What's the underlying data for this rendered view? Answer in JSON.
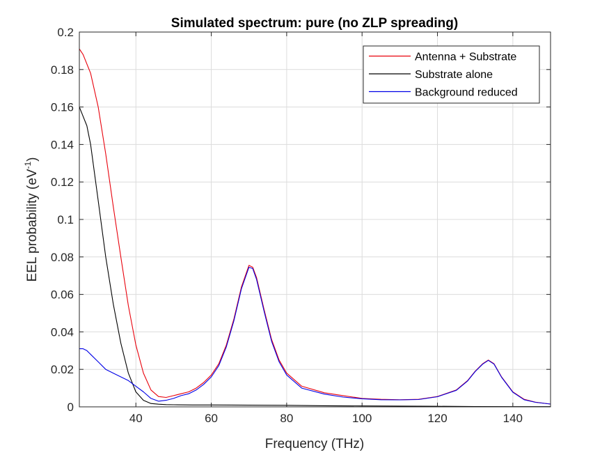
{
  "chart_data": {
    "type": "line",
    "title": "Simulated spectrum: pure (no ZLP spreading)",
    "xlabel": "Frequency (THz)",
    "ylabel_main": "EEL probability (eV",
    "ylabel_sup": "-1",
    "ylabel_end": ")",
    "xlim": [
      25,
      150
    ],
    "ylim": [
      0,
      0.2
    ],
    "xticks": [
      40,
      60,
      80,
      100,
      120,
      140
    ],
    "xtick_labels": [
      "40",
      "60",
      "80",
      "100",
      "120",
      "140"
    ],
    "yticks": [
      0,
      0.02,
      0.04,
      0.06,
      0.08,
      0.1,
      0.12,
      0.14,
      0.16,
      0.18,
      0.2
    ],
    "ytick_labels": [
      "0",
      "0.02",
      "0.04",
      "0.06",
      "0.08",
      "0.1",
      "0.12",
      "0.14",
      "0.16",
      "0.18",
      "0.2"
    ],
    "grid": true,
    "legend_position": "top-right",
    "series": [
      {
        "name": "Antenna + Substrate",
        "color": "#e8000b",
        "x": [
          25,
          26,
          28,
          30,
          32,
          34,
          36,
          38,
          40,
          42,
          44,
          46,
          48,
          50,
          52,
          54,
          56,
          58,
          60,
          62,
          64,
          66,
          68,
          70,
          71,
          72,
          74,
          76,
          78,
          80,
          84,
          90,
          95,
          100,
          105,
          110,
          115,
          120,
          125,
          128,
          130,
          132,
          133.5,
          135,
          137,
          140,
          143,
          146,
          150
        ],
        "y": [
          0.191,
          0.188,
          0.178,
          0.16,
          0.135,
          0.107,
          0.08,
          0.054,
          0.033,
          0.018,
          0.009,
          0.0055,
          0.005,
          0.006,
          0.007,
          0.008,
          0.01,
          0.013,
          0.017,
          0.023,
          0.033,
          0.047,
          0.064,
          0.0755,
          0.0745,
          0.069,
          0.052,
          0.036,
          0.025,
          0.018,
          0.011,
          0.0075,
          0.006,
          0.0045,
          0.004,
          0.0038,
          0.004,
          0.0055,
          0.009,
          0.014,
          0.019,
          0.023,
          0.025,
          0.023,
          0.016,
          0.008,
          0.004,
          0.0025,
          0.0015
        ]
      },
      {
        "name": "Substrate alone",
        "color": "#000000",
        "x": [
          25,
          26,
          27,
          28,
          30,
          32,
          34,
          36,
          38,
          40,
          42,
          44,
          46,
          48,
          50,
          55,
          60,
          70,
          80,
          90,
          100,
          110,
          120,
          130,
          140,
          150
        ],
        "y": [
          0.16,
          0.155,
          0.15,
          0.14,
          0.11,
          0.08,
          0.055,
          0.034,
          0.018,
          0.008,
          0.0035,
          0.0018,
          0.0014,
          0.0012,
          0.0011,
          0.001,
          0.001,
          0.0009,
          0.0008,
          0.0006,
          0.0005,
          0.0004,
          0.0003,
          0.0002,
          0.0001,
          0.0001
        ]
      },
      {
        "name": "Background reduced",
        "color": "#0000e6",
        "x": [
          25,
          26,
          27,
          28,
          30,
          32,
          34,
          36,
          38,
          40,
          42,
          44,
          46,
          48,
          50,
          52,
          54,
          56,
          58,
          60,
          62,
          64,
          66,
          68,
          70,
          71,
          72,
          74,
          76,
          78,
          80,
          84,
          90,
          95,
          100,
          105,
          110,
          115,
          120,
          125,
          128,
          130,
          132,
          133.5,
          135,
          137,
          140,
          143,
          146,
          150
        ],
        "y": [
          0.031,
          0.031,
          0.03,
          0.028,
          0.024,
          0.02,
          0.018,
          0.016,
          0.014,
          0.011,
          0.008,
          0.0045,
          0.003,
          0.0035,
          0.0045,
          0.006,
          0.007,
          0.009,
          0.012,
          0.016,
          0.022,
          0.032,
          0.046,
          0.063,
          0.0745,
          0.0738,
          0.068,
          0.051,
          0.035,
          0.024,
          0.017,
          0.01,
          0.0068,
          0.0052,
          0.0043,
          0.0038,
          0.0037,
          0.0039,
          0.0054,
          0.0088,
          0.0138,
          0.0188,
          0.0228,
          0.0248,
          0.0228,
          0.0158,
          0.0078,
          0.0038,
          0.0024,
          0.0015
        ]
      }
    ]
  }
}
